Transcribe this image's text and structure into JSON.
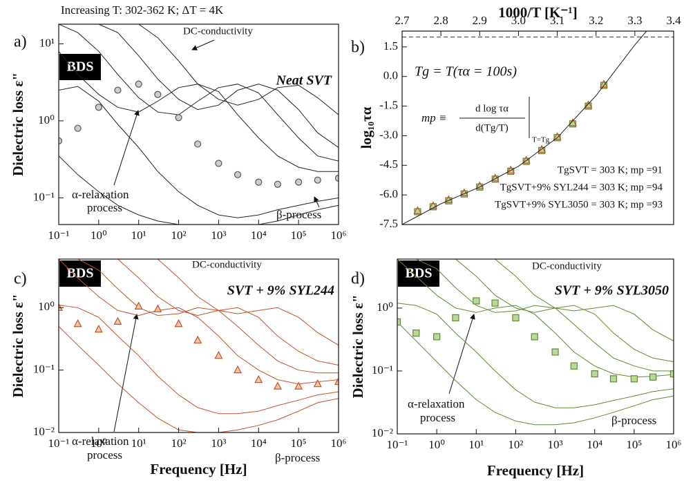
{
  "chart_data": [
    {
      "type": "line",
      "label": "a)",
      "note": "Increasing T: 302-362 K; ΔT = 4K",
      "badge": "BDS",
      "dc_label": "DC-conductivity",
      "sample": "Neat SVT",
      "alpha_label": [
        "α-relaxation",
        "process"
      ],
      "beta_label": "β-process",
      "y_label": "Dielectric loss ε\"",
      "xscale": "log",
      "yscale": "log",
      "xlim": [
        0.1,
        1000000
      ],
      "ylim": [
        0.045,
        18
      ],
      "xticks": [
        {
          "value": 0.1,
          "label": "10⁻¹"
        },
        {
          "value": 1,
          "label": "10⁰"
        },
        {
          "value": 10,
          "label": "10¹"
        },
        {
          "value": 100,
          "label": "10²"
        },
        {
          "value": 1000,
          "label": "10³"
        },
        {
          "value": 10000,
          "label": "10⁴"
        },
        {
          "value": 100000,
          "label": "10⁵"
        },
        {
          "value": 1000000,
          "label": "10⁶"
        }
      ],
      "yticks": [
        {
          "value": 0.1,
          "label": "10⁻¹"
        },
        {
          "value": 1,
          "label": "10⁰"
        },
        {
          "value": 10,
          "label": "10¹"
        }
      ],
      "x": [
        0.1,
        0.3,
        1,
        3,
        10,
        30,
        100,
        300,
        1000,
        3000,
        10000,
        30000,
        100000,
        300000,
        1000000
      ],
      "series": [
        {
          "color": "#222222",
          "values": [
            0.35,
            0.2,
            0.12,
            0.08,
            0.06,
            0.05,
            0.045,
            0.042,
            0.04,
            0.042,
            0.045,
            0.05,
            0.06,
            0.07,
            0.08
          ]
        },
        {
          "color": "#222222",
          "values": [
            2.5,
            2.8,
            1.8,
            0.9,
            0.45,
            0.22,
            0.12,
            0.08,
            0.06,
            0.055,
            0.06,
            0.07,
            0.08,
            0.09,
            0.1
          ]
        },
        {
          "color": "#222222",
          "values": [
            8,
            4,
            2.2,
            1.5,
            1.3,
            1.8,
            2.7,
            3,
            2.4,
            1.2,
            0.6,
            0.35,
            0.25,
            0.22,
            0.22
          ]
        },
        {
          "color": "#222222",
          "values": [
            18,
            14,
            8,
            4,
            2,
            1.3,
            1.2,
            1.8,
            2.7,
            3,
            2.3,
            1.2,
            0.6,
            0.35,
            0.3
          ]
        },
        {
          "color": "#222222",
          "values": [
            18,
            18,
            18,
            14,
            7,
            3.5,
            1.9,
            1.4,
            1.6,
            2.5,
            3,
            2.5,
            1.4,
            0.7,
            0.45
          ]
        },
        {
          "color": "#222222",
          "values": [
            18,
            18,
            18,
            18,
            18,
            12,
            6,
            3,
            1.9,
            1.6,
            1.9,
            2.7,
            2.9,
            2,
            1.2
          ]
        },
        {
          "color": "#555555",
          "marker": "circle",
          "fill": "#cccccc",
          "values": [
            0.55,
            0.8,
            1.5,
            2.5,
            3,
            2.2,
            1.1,
            0.5,
            0.28,
            0.2,
            0.16,
            0.15,
            0.16,
            0.17,
            0.18
          ]
        }
      ]
    },
    {
      "type": "scatter",
      "label": "b)",
      "x_label": "1000/T [K⁻¹]",
      "y_label": "log₁₀τα",
      "x_axis_position": "top",
      "tg_label": "Tg = T(τα = 100s)",
      "formula": [
        "mp ≡",
        "d log τα",
        "d(Tg/T)",
        "T=Tg"
      ],
      "results": [
        "TgSVT = 303 K; mp =91",
        "TgSVT+9% SYL244 = 303 K; mp =94",
        "TgSVT+9% SYL3050 = 303 K; mp =93"
      ],
      "result_colors": [
        "#222222",
        "#c0522b",
        "#5f8a32"
      ],
      "reference_y": 2,
      "xlim": [
        2.7,
        3.4
      ],
      "ylim": [
        -7.5,
        2.3
      ],
      "xticks": [
        2.7,
        2.8,
        2.9,
        {
          "value": 3,
          "label": "3.0"
        },
        3.1,
        3.2,
        3.3,
        3.4
      ],
      "yticks": [
        1.5,
        {
          "value": 0,
          "label": "0.0"
        },
        -1.5,
        {
          "value": -3,
          "label": "-3.0"
        },
        -4.5,
        {
          "value": -6,
          "label": "-6.0"
        },
        -7.5
      ],
      "series": [
        {
          "color": "#5f8a32",
          "marker": "square",
          "fill": "#b9d99a",
          "x": [
            2.74,
            2.78,
            2.82,
            2.86,
            2.9,
            2.94,
            2.98,
            3.02,
            3.06,
            3.1,
            3.14,
            3.18,
            3.22
          ],
          "values": [
            -6.85,
            -6.6,
            -6.3,
            -5.95,
            -5.6,
            -5.2,
            -4.8,
            -4.3,
            -3.75,
            -3.1,
            -2.4,
            -1.5,
            -0.45
          ]
        },
        {
          "color": "#c0522b",
          "marker": "triangle",
          "fill": "none",
          "x": [
            2.74,
            2.78,
            2.82,
            2.86,
            2.9,
            2.94,
            2.98,
            3.02,
            3.06,
            3.1,
            3.14,
            3.18,
            3.22
          ],
          "values": [
            -6.8,
            -6.55,
            -6.25,
            -5.9,
            -5.55,
            -5.15,
            -4.75,
            -4.25,
            -3.7,
            -3.05,
            -2.35,
            -1.45,
            -0.4
          ]
        },
        {
          "color": "#222222",
          "x": [
            2.7,
            2.8,
            2.9,
            3.0,
            3.1,
            3.2,
            3.3,
            3.33
          ],
          "values": [
            -7.5,
            -6.45,
            -5.6,
            -4.55,
            -3.1,
            -0.97,
            1.6,
            2.3
          ]
        }
      ]
    },
    {
      "type": "line",
      "label": "c)",
      "badge": "BDS",
      "dc_label": "DC-conductivity",
      "sample": "SVT + 9% SYL244",
      "sample_color": "#c0522b",
      "alpha_label": [
        "α-relaxation",
        "process"
      ],
      "beta_label": "β-process",
      "y_label": "Dielectric loss ε\"",
      "x_label": "Frequency [Hz]",
      "xscale": "log",
      "yscale": "log",
      "xlim": [
        0.1,
        1000000
      ],
      "ylim": [
        0.01,
        6
      ],
      "xticks": [
        {
          "value": 0.1,
          "label": "10⁻¹"
        },
        {
          "value": 1,
          "label": "10⁰"
        },
        {
          "value": 10,
          "label": "10¹"
        },
        {
          "value": 100,
          "label": "10²"
        },
        {
          "value": 1000,
          "label": "10³"
        },
        {
          "value": 10000,
          "label": "10⁴"
        },
        {
          "value": 100000,
          "label": "10⁵"
        },
        {
          "value": 1000000,
          "label": "10⁶"
        }
      ],
      "yticks": [
        {
          "value": 0.01,
          "label": "10⁻²"
        },
        {
          "value": 0.1,
          "label": "10⁻¹"
        },
        {
          "value": 1,
          "label": "10⁰"
        }
      ],
      "x": [
        0.1,
        0.3,
        1,
        3,
        10,
        30,
        100,
        300,
        1000,
        3000,
        10000,
        30000,
        100000,
        300000,
        1000000
      ],
      "series": [
        {
          "color": "#c0522b",
          "values": [
            0.5,
            0.25,
            0.12,
            0.06,
            0.03,
            0.017,
            0.011,
            0.01,
            0.01,
            0.011,
            0.013,
            0.016,
            0.022,
            0.03,
            0.035
          ]
        },
        {
          "color": "#c0522b",
          "values": [
            1.1,
            1.0,
            0.7,
            0.35,
            0.17,
            0.08,
            0.04,
            0.025,
            0.02,
            0.02,
            0.022,
            0.027,
            0.033,
            0.04,
            0.045
          ]
        },
        {
          "color": "#c0522b",
          "values": [
            6,
            3,
            1.5,
            0.9,
            0.75,
            0.9,
            1.0,
            0.7,
            0.35,
            0.17,
            0.1,
            0.07,
            0.06,
            0.065,
            0.07
          ]
        },
        {
          "color": "#c0522b",
          "values": [
            6,
            6,
            4,
            2,
            1.0,
            0.75,
            0.8,
            1.0,
            0.9,
            0.5,
            0.25,
            0.14,
            0.1,
            0.09,
            0.09
          ]
        },
        {
          "color": "#c0522b",
          "values": [
            6,
            6,
            6,
            6,
            3,
            1.5,
            0.9,
            0.75,
            0.9,
            1.0,
            0.7,
            0.35,
            0.2,
            0.14,
            0.12
          ]
        },
        {
          "color": "#c0522b",
          "values": [
            6,
            6,
            6,
            6,
            6,
            6,
            3,
            1.5,
            0.9,
            0.8,
            0.9,
            1.0,
            0.7,
            0.4,
            0.25
          ]
        },
        {
          "color": "#c0522b",
          "marker": "triangle",
          "fill": "#f2c7a8",
          "values": [
            1.0,
            0.55,
            0.45,
            0.6,
            1.05,
            0.95,
            0.55,
            0.3,
            0.17,
            0.1,
            0.07,
            0.055,
            0.055,
            0.06,
            0.065
          ]
        }
      ]
    },
    {
      "type": "line",
      "label": "d)",
      "badge": "BDS",
      "dc_label": "DC-conductivity",
      "sample": "SVT + 9% SYL3050",
      "sample_color": "#5f8a32",
      "alpha_label": [
        "α-relaxation",
        "process"
      ],
      "beta_label": "β-process",
      "y_label": "Dielectric loss ε\"",
      "x_label": "Frequency [Hz]",
      "xscale": "log",
      "yscale": "log",
      "xlim": [
        0.1,
        1000000
      ],
      "ylim": [
        0.01,
        6
      ],
      "xticks": [
        {
          "value": 0.1,
          "label": "10⁻¹"
        },
        {
          "value": 1,
          "label": "10⁰"
        },
        {
          "value": 10,
          "label": "10¹"
        },
        {
          "value": 100,
          "label": "10²"
        },
        {
          "value": 1000,
          "label": "10³"
        },
        {
          "value": 10000,
          "label": "10⁴"
        },
        {
          "value": 100000,
          "label": "10⁵"
        },
        {
          "value": 1000000,
          "label": "10⁶"
        }
      ],
      "yticks": [
        {
          "value": 0.01,
          "label": "10⁻²"
        },
        {
          "value": 0.1,
          "label": "10⁻¹"
        },
        {
          "value": 1,
          "label": "10⁰"
        }
      ],
      "x": [
        0.1,
        0.3,
        1,
        3,
        10,
        30,
        100,
        300,
        1000,
        3000,
        10000,
        30000,
        100000,
        300000,
        1000000
      ],
      "series": [
        {
          "color": "#5f8a32",
          "values": [
            0.6,
            0.3,
            0.14,
            0.07,
            0.035,
            0.022,
            0.016,
            0.014,
            0.014,
            0.015,
            0.018,
            0.022,
            0.028,
            0.035,
            0.04
          ]
        },
        {
          "color": "#5f8a32",
          "values": [
            1.2,
            1.1,
            0.8,
            0.4,
            0.2,
            0.1,
            0.05,
            0.032,
            0.026,
            0.026,
            0.029,
            0.034,
            0.04,
            0.047,
            0.052
          ]
        },
        {
          "color": "#5f8a32",
          "values": [
            6,
            3.2,
            1.6,
            1.0,
            0.85,
            1.0,
            1.1,
            0.8,
            0.4,
            0.2,
            0.12,
            0.09,
            0.08,
            0.082,
            0.088
          ]
        },
        {
          "color": "#5f8a32",
          "values": [
            6,
            6,
            4.2,
            2.1,
            1.1,
            0.85,
            0.9,
            1.1,
            1.0,
            0.55,
            0.28,
            0.16,
            0.12,
            0.1,
            0.1
          ]
        },
        {
          "color": "#5f8a32",
          "values": [
            6,
            6,
            6,
            6,
            3.2,
            1.6,
            1.0,
            0.85,
            1.0,
            1.1,
            0.8,
            0.4,
            0.22,
            0.16,
            0.14
          ]
        },
        {
          "color": "#5f8a32",
          "values": [
            6,
            6,
            6,
            6,
            6,
            6,
            3.2,
            1.6,
            1.0,
            0.9,
            1.0,
            1.1,
            0.8,
            0.45,
            0.3
          ]
        },
        {
          "color": "#5f8a32",
          "marker": "square",
          "fill": "#b9d99a",
          "values": [
            0.6,
            0.4,
            0.35,
            0.7,
            1.3,
            1.2,
            0.7,
            0.35,
            0.2,
            0.12,
            0.09,
            0.075,
            0.075,
            0.08,
            0.09
          ]
        }
      ]
    }
  ]
}
